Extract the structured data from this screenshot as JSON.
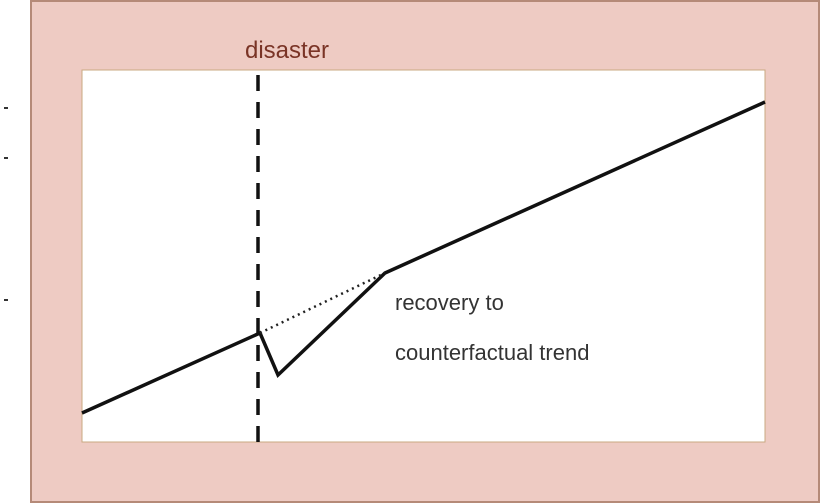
{
  "diagram": {
    "event_label": "disaster",
    "annotation": [
      "recovery to",
      "counterfactual trend"
    ]
  }
}
